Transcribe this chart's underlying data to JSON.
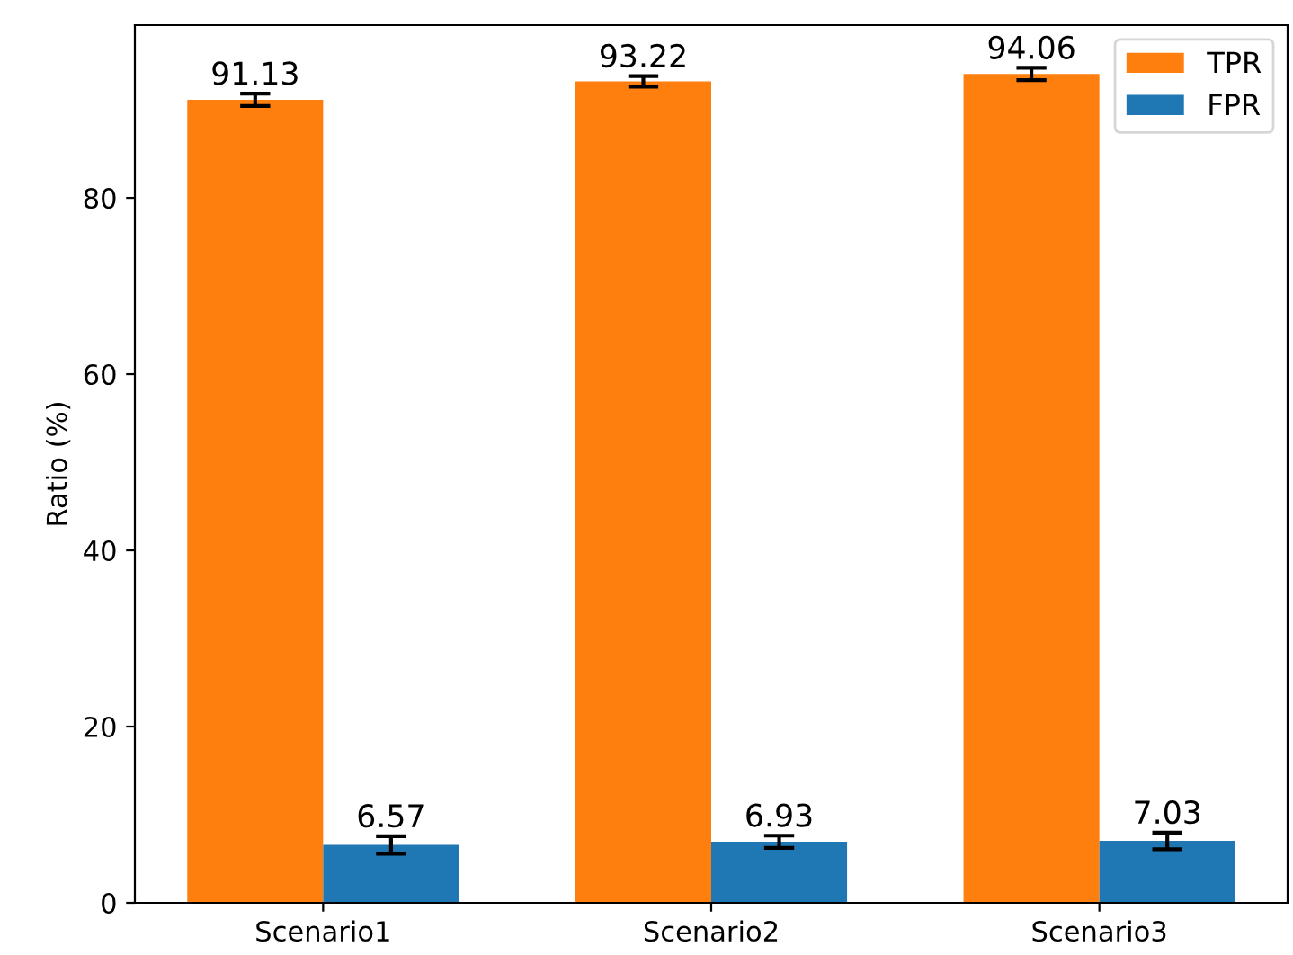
{
  "chart_data": {
    "type": "bar",
    "ylabel": "Ratio (%)",
    "categories": [
      "Scenario1",
      "Scenario2",
      "Scenario3"
    ],
    "series": [
      {
        "name": "TPR",
        "color": "#ff7f0e",
        "values": [
          91.13,
          93.22,
          94.06
        ],
        "errors": [
          0.7,
          0.6,
          0.7
        ]
      },
      {
        "name": "FPR",
        "color": "#1f77b4",
        "values": [
          6.57,
          6.93,
          7.03
        ],
        "errors": [
          1.0,
          0.7,
          0.95
        ]
      }
    ],
    "data_labels": true,
    "ylim": [
      0,
      99.6
    ],
    "yticks": [
      0,
      20,
      40,
      60,
      80
    ],
    "legend": "top right",
    "grid": false
  }
}
